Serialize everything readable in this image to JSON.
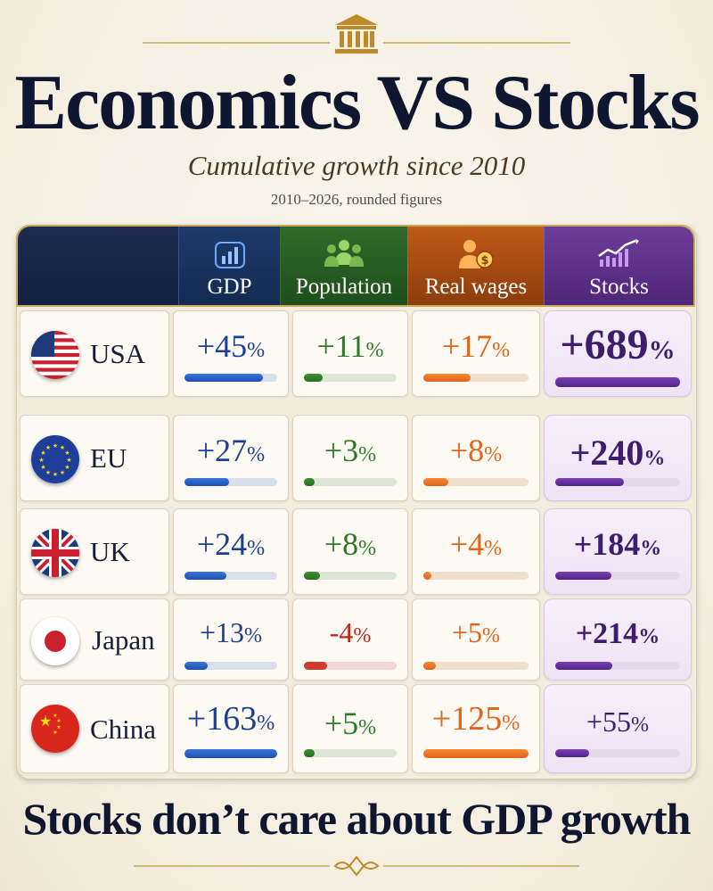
{
  "header": {
    "title": "Economics VS Stocks",
    "subtitle": "Cumulative growth since 2010",
    "note": "2010–2026, rounded figures"
  },
  "columns": [
    {
      "key": "gdp",
      "label": "GDP",
      "icon": "bar-chart-icon",
      "color": "#1d3f8f"
    },
    {
      "key": "population",
      "label": "Population",
      "icon": "people-icon",
      "color": "#2f7a2a"
    },
    {
      "key": "wages",
      "label": "Real wages",
      "icon": "worker-money-icon",
      "color": "#e0641a"
    },
    {
      "key": "stocks",
      "label": "Stocks",
      "icon": "rising-chart-icon",
      "color": "#4f2488"
    }
  ],
  "rows": [
    {
      "country": "USA",
      "flag": "usa-flag-icon",
      "gdp": {
        "text": "+45",
        "level": 0.85
      },
      "population": {
        "text": "+11",
        "level": 0.2
      },
      "wages": {
        "text": "+17",
        "level": 0.45
      },
      "stocks": {
        "text": "+689",
        "level": 1.0
      }
    },
    {
      "country": "EU",
      "flag": "eu-flag-icon",
      "gdp": {
        "text": "+27",
        "level": 0.48
      },
      "population": {
        "text": "+3",
        "level": 0.12
      },
      "wages": {
        "text": "+8",
        "level": 0.24
      },
      "stocks": {
        "text": "+240",
        "level": 0.55
      }
    },
    {
      "country": "UK",
      "flag": "uk-flag-icon",
      "gdp": {
        "text": "+24",
        "level": 0.45
      },
      "population": {
        "text": "+8",
        "level": 0.17
      },
      "wages": {
        "text": "+4",
        "level": 0.08
      },
      "stocks": {
        "text": "+184",
        "level": 0.45
      }
    },
    {
      "country": "Japan",
      "flag": "japan-flag-icon",
      "gdp": {
        "text": "+13",
        "level": 0.25
      },
      "population": {
        "text": "-4",
        "level": 0.25,
        "negative": true
      },
      "wages": {
        "text": "+5",
        "level": 0.12
      },
      "stocks": {
        "text": "+214",
        "level": 0.46
      }
    },
    {
      "country": "China",
      "flag": "china-flag-icon",
      "gdp": {
        "text": "+163",
        "level": 1.0
      },
      "population": {
        "text": "+5",
        "level": 0.12
      },
      "wages": {
        "text": "+125",
        "level": 1.0
      },
      "stocks": {
        "text": "+55",
        "level": 0.27
      }
    }
  ],
  "footer": "Stocks don’t care about GDP growth",
  "chart_data": {
    "type": "table",
    "title": "Economics VS Stocks",
    "subtitle": "Cumulative growth since 2010",
    "categories": [
      "USA",
      "EU",
      "UK",
      "Japan",
      "China"
    ],
    "series": [
      {
        "name": "GDP",
        "values": [
          45,
          27,
          24,
          13,
          163
        ]
      },
      {
        "name": "Population",
        "values": [
          11,
          3,
          8,
          -4,
          5
        ]
      },
      {
        "name": "Real wages",
        "values": [
          17,
          8,
          4,
          5,
          125
        ]
      },
      {
        "name": "Stocks",
        "values": [
          689,
          240,
          184,
          214,
          55
        ]
      }
    ],
    "unit": "%"
  }
}
